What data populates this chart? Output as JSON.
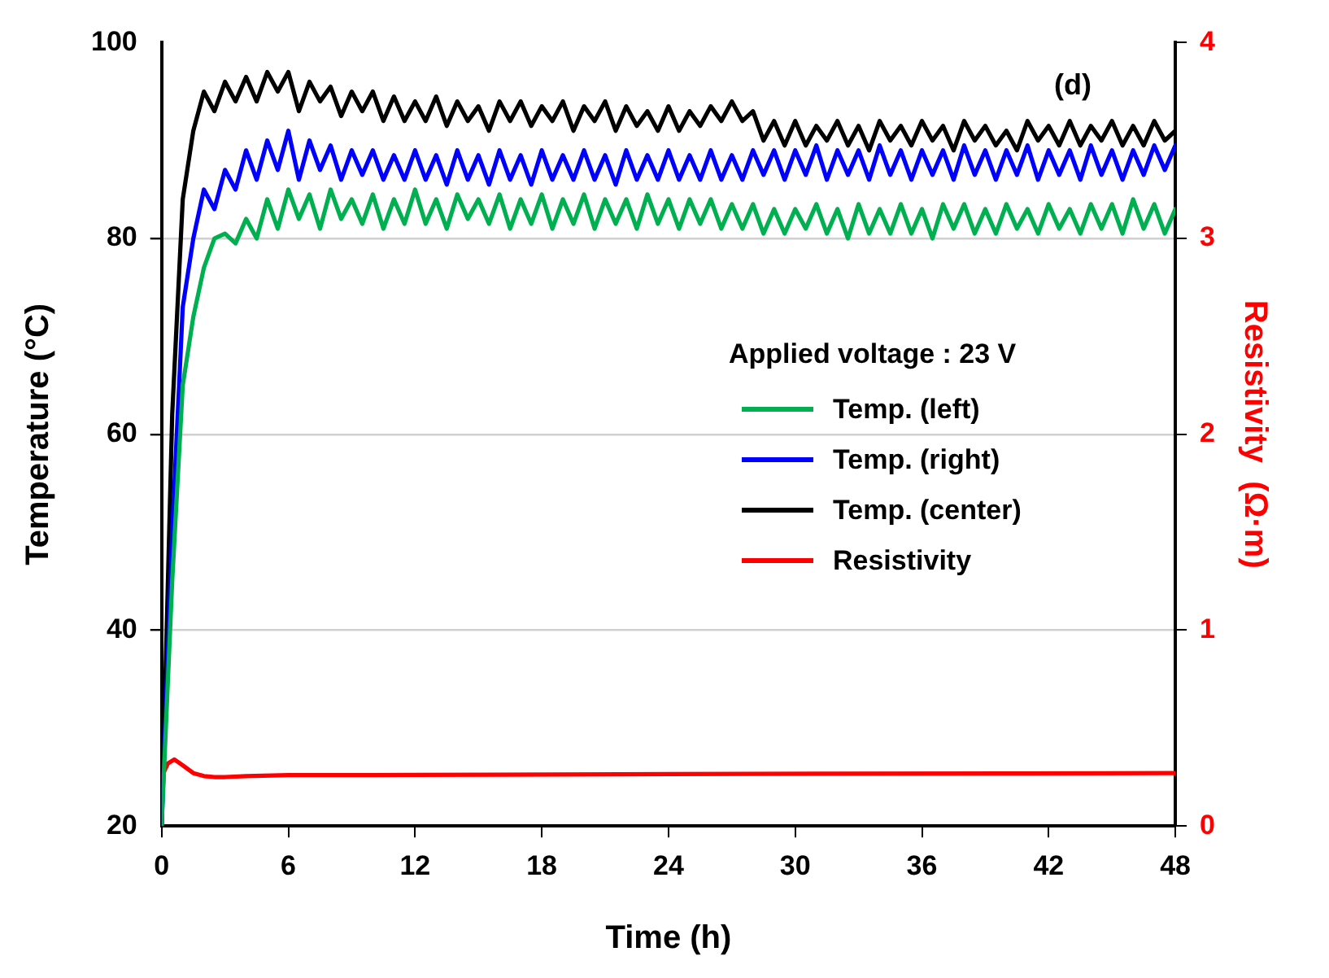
{
  "chart_data": {
    "type": "line",
    "xlabel": "Time (h)",
    "ylabel": "Temperature (°C)",
    "y2label": "Resistivity  (Ω·m)",
    "legend_title": "Applied voltage : 23 V",
    "annotations": [
      "(d)"
    ],
    "x": [
      0,
      0.5,
      1,
      1.5,
      2,
      2.5,
      3,
      3.5,
      4,
      4.5,
      5,
      5.5,
      6,
      6.5,
      7,
      7.5,
      8,
      8.5,
      9,
      9.5,
      10,
      10.5,
      11,
      11.5,
      12,
      12.5,
      13,
      13.5,
      14,
      14.5,
      15,
      15.5,
      16,
      16.5,
      17,
      17.5,
      18,
      18.5,
      19,
      19.5,
      20,
      20.5,
      21,
      21.5,
      22,
      22.5,
      23,
      23.5,
      24,
      24.5,
      25,
      25.5,
      26,
      26.5,
      27,
      27.5,
      28,
      28.5,
      29,
      29.5,
      30,
      30.5,
      31,
      31.5,
      32,
      32.5,
      33,
      33.5,
      34,
      34.5,
      35,
      35.5,
      36,
      36.5,
      37,
      37.5,
      38,
      38.5,
      39,
      39.5,
      40,
      40.5,
      41,
      41.5,
      42,
      42.5,
      43,
      43.5,
      44,
      44.5,
      45,
      45.5,
      46,
      46.5,
      47,
      47.5,
      48
    ],
    "series": [
      {
        "name": "Temp. (left)",
        "color": "#00b050",
        "values": [
          20,
          45,
          65,
          72,
          77,
          80,
          80.5,
          79.5,
          82,
          80,
          84,
          81,
          85,
          82,
          84.5,
          81,
          85,
          82,
          84,
          81.5,
          84.5,
          81,
          84,
          81.5,
          85,
          81.5,
          84,
          81,
          84.5,
          82,
          84,
          81.5,
          84.5,
          81,
          84,
          81.5,
          84.5,
          81,
          84,
          81.5,
          84.5,
          81,
          84,
          81.5,
          84,
          81,
          84.5,
          81.5,
          84,
          81,
          84,
          81.5,
          84,
          81,
          83.5,
          81,
          83.5,
          80.5,
          83,
          80.5,
          83,
          81,
          83.5,
          80.5,
          83,
          80,
          83.5,
          80.5,
          83,
          80.5,
          83.5,
          80.5,
          83,
          80,
          83.5,
          81,
          83.5,
          80.5,
          83,
          80.5,
          83.5,
          81,
          83,
          80.5,
          83.5,
          81,
          83,
          80.5,
          83.5,
          81,
          83.5,
          80.5,
          84,
          81,
          83.5,
          80.5,
          83
        ]
      },
      {
        "name": "Temp. (right)",
        "color": "#0000ff",
        "values": [
          20,
          50,
          73,
          80,
          85,
          83,
          87,
          85,
          89,
          86,
          90,
          87,
          91,
          86,
          90,
          87,
          89.5,
          86,
          89,
          86.5,
          89,
          86,
          88.5,
          86,
          89,
          86,
          88.5,
          85.5,
          89,
          86,
          88.5,
          85.5,
          89,
          86,
          88.5,
          85.5,
          89,
          86,
          88.5,
          86,
          89,
          86,
          88.5,
          85.5,
          89,
          86,
          88.5,
          86,
          89,
          86,
          88.5,
          86,
          89,
          86,
          88.5,
          86,
          89,
          86.5,
          89,
          86,
          89,
          86.5,
          89.5,
          86,
          89,
          86.5,
          89,
          86,
          89.5,
          86.5,
          89,
          86,
          89,
          86.5,
          89,
          86,
          89.5,
          86.5,
          89,
          86,
          89,
          86.5,
          89.5,
          86,
          89,
          86.5,
          89,
          86,
          89.5,
          86.5,
          89,
          86,
          89,
          86.5,
          89.5,
          87,
          89.5
        ]
      },
      {
        "name": "Temp. (center)",
        "color": "#000000",
        "values": [
          20,
          62,
          84,
          91,
          95,
          93,
          96,
          94,
          96.5,
          94,
          97,
          95,
          97,
          93,
          96,
          94,
          95.5,
          92.5,
          95,
          93,
          95,
          92,
          94.5,
          92,
          94,
          92,
          94.5,
          91.5,
          94,
          92,
          93.5,
          91,
          94,
          92,
          94,
          91.5,
          93.5,
          92,
          94,
          91,
          93.5,
          92,
          94,
          91,
          93.5,
          91.5,
          93,
          91,
          93.5,
          91,
          93,
          91.5,
          93.5,
          92,
          94,
          92,
          93,
          90,
          92,
          89.5,
          92,
          89.5,
          91.5,
          90,
          92,
          89.5,
          91.5,
          89,
          92,
          90,
          91.5,
          89.5,
          92,
          90,
          91.5,
          89,
          92,
          90,
          91.5,
          89.5,
          91,
          89,
          92,
          90,
          91.5,
          89.5,
          92,
          89.5,
          91.5,
          90,
          92,
          89.5,
          91.5,
          89.5,
          92,
          90,
          91
        ]
      },
      {
        "name": "Resistivity",
        "color": "#ff0000",
        "axis": "y2",
        "x": [
          0,
          0.3,
          0.6,
          1,
          1.5,
          2,
          2.5,
          3,
          4,
          6,
          10,
          16,
          24,
          32,
          40,
          48
        ],
        "values": [
          0.25,
          0.32,
          0.34,
          0.31,
          0.27,
          0.255,
          0.25,
          0.25,
          0.255,
          0.26,
          0.26,
          0.262,
          0.265,
          0.267,
          0.268,
          0.27
        ]
      }
    ],
    "xlim": [
      0,
      48
    ],
    "xticks": [
      0,
      6,
      12,
      18,
      24,
      30,
      36,
      42,
      48
    ],
    "ylim": [
      20,
      100
    ],
    "yticks": [
      20,
      40,
      60,
      80,
      100
    ],
    "y2lim": [
      0,
      4
    ],
    "y2ticks": [
      0,
      1,
      2,
      3,
      4
    ],
    "grid": "y",
    "legend": "center right",
    "marker": "none",
    "line_style": "solid"
  }
}
